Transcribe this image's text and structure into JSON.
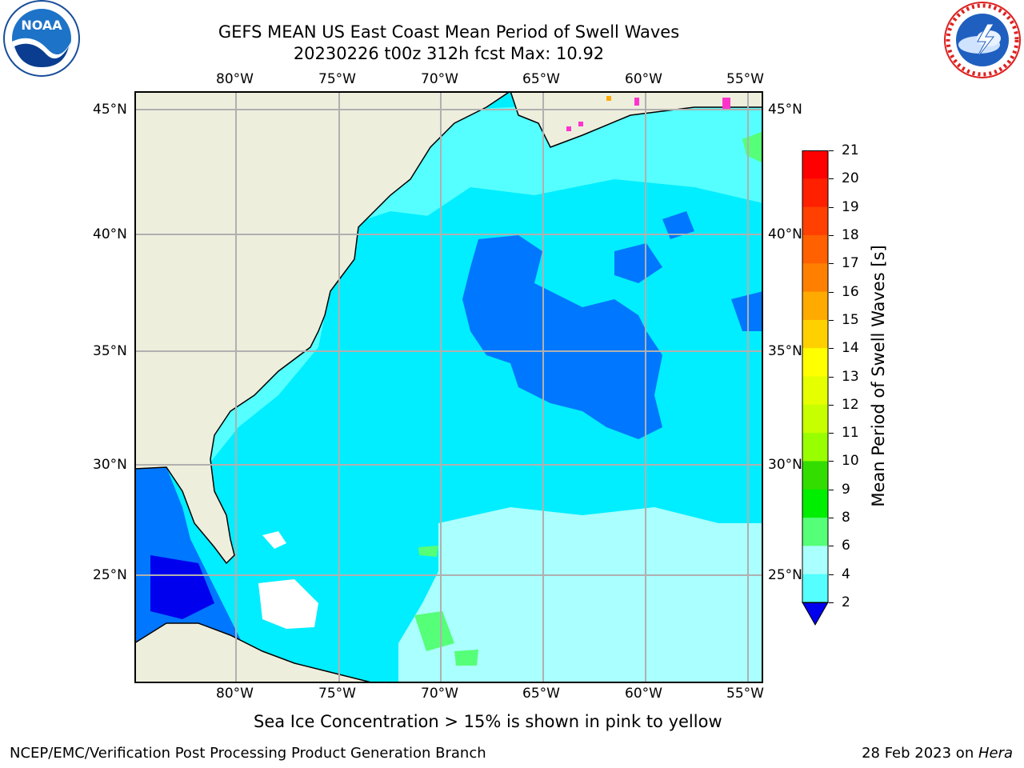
{
  "title": {
    "line1": "GEFS MEAN US East Coast Mean Period of Swell Waves",
    "line2": "20230226 t00z 312h fcst   Max: 10.92"
  },
  "logos": {
    "left": {
      "name": "NOAA",
      "text": "NOAA",
      "ring_text": "NATIONAL OCEANIC AND ATMOSPHERIC ADMINISTRATION · U.S. DEPARTMENT OF COMMERCE"
    },
    "right": {
      "name": "National Weather Service",
      "ring_text": "NATIONAL WEATHER SERVICE"
    }
  },
  "map": {
    "lon_ticks": [
      "80°W",
      "75°W",
      "70°W",
      "65°W",
      "60°W",
      "55°W"
    ],
    "lat_ticks": [
      "45°N",
      "40°N",
      "35°N",
      "30°N",
      "25°N"
    ],
    "lon_range": [
      -84.5,
      -53.6
    ],
    "lat_range": [
      20.5,
      45.8
    ],
    "grid": true,
    "colors": {
      "land": "#eeeedd",
      "grid": "#b0b0b0",
      "coast": "#000000",
      "no_data": "#ffffff"
    }
  },
  "colorbar": {
    "label": "Mean Period of Swell Waves [s]",
    "tick_labels": [
      "21",
      "20",
      "19",
      "18",
      "17",
      "16",
      "15",
      "14",
      "13",
      "12",
      "11",
      "10",
      "9",
      "8",
      "6",
      "4",
      "2"
    ],
    "colors": [
      "#ff0000",
      "#ff2000",
      "#ff4000",
      "#ff6000",
      "#ff8000",
      "#ffaa00",
      "#ffd000",
      "#ffff00",
      "#e6ff00",
      "#c8ff00",
      "#99ff00",
      "#33dd00",
      "#00ee00",
      "#55ff77",
      "#aaffff",
      "#55ffff",
      "#00eeff",
      "#0077ff"
    ],
    "under_color": "#0000ee",
    "extend": "min"
  },
  "annotation": "Sea Ice Concentration > 15% is shown in pink to yellow",
  "footer": {
    "left": "NCEP/EMC/Verification Post Processing Product Generation Branch",
    "date": "28 Feb 2023 on ",
    "machine": "Hera"
  }
}
